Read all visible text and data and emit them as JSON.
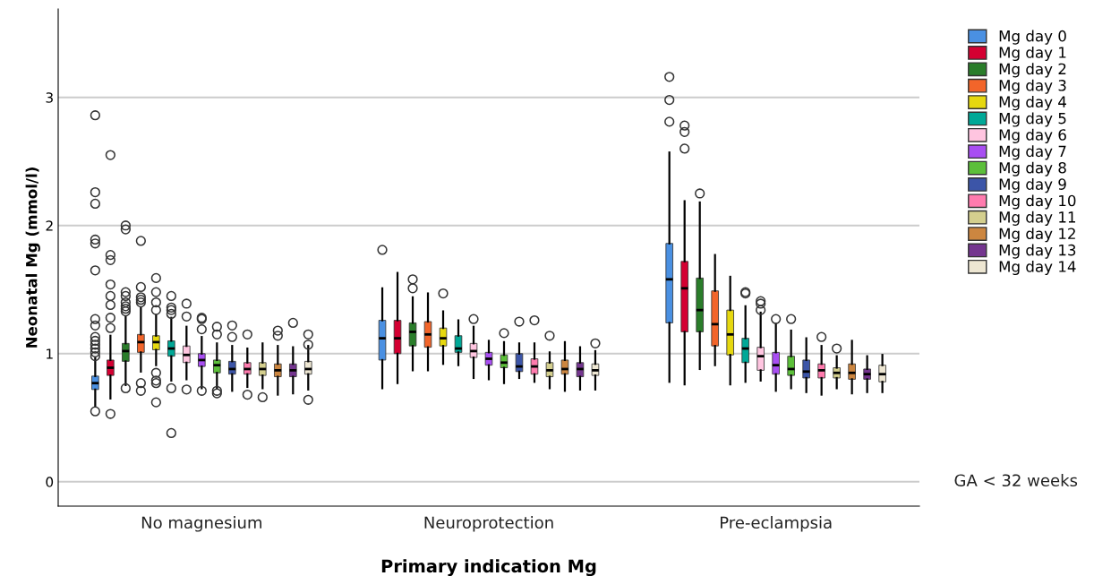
{
  "chart_data": {
    "type": "box",
    "xlabel": "Primary indication Mg",
    "ylabel": "Neonatal Mg (mmol/l)",
    "categories": [
      "No magnesium",
      "Neuroprotection",
      "Pre-eclampsia"
    ],
    "ylim": [
      -0.19,
      3.69
    ],
    "yticks": [
      0,
      1,
      2,
      3
    ],
    "grid": "y",
    "legend": "top right",
    "annotations": [
      "GA < 32 weeks"
    ],
    "series": [
      {
        "name": "Mg day 0",
        "color": "#4a90e2",
        "boxes": [
          {
            "low": 0.59,
            "q1": 0.72,
            "median": 0.77,
            "q3": 0.825,
            "high": 0.965,
            "outliers": [
              0.55,
              0.98,
              1.01,
              1.04,
              1.07,
              1.1,
              1.13,
              1.22,
              1.27,
              1.65,
              1.86,
              1.89,
              2.17,
              2.26,
              2.86
            ]
          },
          {
            "low": 0.73,
            "q1": 0.95,
            "median": 1.12,
            "q3": 1.26,
            "high": 1.51,
            "outliers": [
              1.81
            ]
          },
          {
            "low": 0.78,
            "q1": 1.24,
            "median": 1.58,
            "q3": 1.86,
            "high": 2.57,
            "outliers": [
              2.81,
              2.98,
              3.16
            ]
          }
        ]
      },
      {
        "name": "Mg day 1",
        "color": "#d40032",
        "boxes": [
          {
            "low": 0.65,
            "q1": 0.83,
            "median": 0.89,
            "q3": 0.95,
            "high": 1.14,
            "outliers": [
              0.53,
              1.2,
              1.28,
              1.38,
              1.45,
              1.54,
              1.73,
              1.77,
              2.55
            ]
          },
          {
            "low": 0.77,
            "q1": 1.0,
            "median": 1.12,
            "q3": 1.26,
            "high": 1.63
          },
          {
            "low": 0.76,
            "q1": 1.17,
            "median": 1.51,
            "q3": 1.72,
            "high": 2.19,
            "outliers": [
              2.6,
              2.73,
              2.78
            ]
          }
        ]
      },
      {
        "name": "Mg day 2",
        "color": "#2a7d2a",
        "boxes": [
          {
            "low": 0.755,
            "q1": 0.94,
            "median": 1.02,
            "q3": 1.08,
            "high": 1.29,
            "outliers": [
              0.73,
              1.33,
              1.35,
              1.37,
              1.4,
              1.45,
              1.48,
              1.97,
              2.0
            ]
          },
          {
            "low": 0.87,
            "q1": 1.06,
            "median": 1.17,
            "q3": 1.24,
            "high": 1.44,
            "outliers": [
              1.51,
              1.58
            ]
          },
          {
            "low": 0.88,
            "q1": 1.17,
            "median": 1.34,
            "q3": 1.59,
            "high": 2.18,
            "outliers": [
              2.25
            ]
          }
        ]
      },
      {
        "name": "Mg day 3",
        "color": "#f2652a",
        "boxes": [
          {
            "low": 0.86,
            "q1": 1.01,
            "median": 1.09,
            "q3": 1.15,
            "high": 1.36,
            "outliers": [
              0.71,
              0.77,
              1.4,
              1.42,
              1.44,
              1.52,
              1.88
            ]
          },
          {
            "low": 0.87,
            "q1": 1.05,
            "median": 1.15,
            "q3": 1.25,
            "high": 1.47
          },
          {
            "low": 0.91,
            "q1": 1.06,
            "median": 1.23,
            "q3": 1.49,
            "high": 1.77
          }
        ]
      },
      {
        "name": "Mg day 4",
        "color": "#e6d80f",
        "boxes": [
          {
            "low": 0.91,
            "q1": 1.03,
            "median": 1.09,
            "q3": 1.14,
            "high": 1.3,
            "outliers": [
              0.62,
              0.77,
              0.79,
              0.85,
              1.34,
              1.4,
              1.48,
              1.59
            ]
          },
          {
            "low": 0.92,
            "q1": 1.06,
            "median": 1.12,
            "q3": 1.2,
            "high": 1.33,
            "outliers": [
              1.47
            ]
          },
          {
            "low": 0.76,
            "q1": 0.99,
            "median": 1.15,
            "q3": 1.34,
            "high": 1.6
          }
        ]
      },
      {
        "name": "Mg day 5",
        "color": "#00a897",
        "boxes": [
          {
            "low": 0.79,
            "q1": 0.98,
            "median": 1.04,
            "q3": 1.1,
            "high": 1.28,
            "outliers": [
              0.38,
              0.73,
              1.31,
              1.34,
              1.36,
              1.45
            ]
          },
          {
            "low": 0.91,
            "q1": 1.01,
            "median": 1.04,
            "q3": 1.14,
            "high": 1.26
          },
          {
            "low": 0.78,
            "q1": 0.93,
            "median": 1.04,
            "q3": 1.12,
            "high": 1.37,
            "outliers": [
              1.47,
              1.48
            ]
          }
        ]
      },
      {
        "name": "Mg day 6",
        "color": "#ffc5e0",
        "boxes": [
          {
            "low": 0.8,
            "q1": 0.93,
            "median": 0.99,
            "q3": 1.06,
            "high": 1.21,
            "outliers": [
              0.72,
              1.29,
              1.39
            ]
          },
          {
            "low": 0.81,
            "q1": 0.97,
            "median": 1.02,
            "q3": 1.08,
            "high": 1.21,
            "outliers": [
              1.27
            ]
          },
          {
            "low": 0.79,
            "q1": 0.87,
            "median": 0.98,
            "q3": 1.05,
            "high": 1.32,
            "outliers": [
              1.34,
              1.39,
              1.41
            ]
          }
        ]
      },
      {
        "name": "Mg day 7",
        "color": "#a84ef2",
        "boxes": [
          {
            "low": 0.73,
            "q1": 0.9,
            "median": 0.95,
            "q3": 1.0,
            "high": 1.13,
            "outliers": [
              0.71,
              1.19,
              1.27,
              1.28
            ]
          },
          {
            "low": 0.8,
            "q1": 0.91,
            "median": 0.96,
            "q3": 1.01,
            "high": 1.1
          },
          {
            "low": 0.71,
            "q1": 0.84,
            "median": 0.91,
            "q3": 1.01,
            "high": 1.23,
            "outliers": [
              1.27
            ]
          }
        ]
      },
      {
        "name": "Mg day 8",
        "color": "#5cbf3a",
        "boxes": [
          {
            "low": 0.73,
            "q1": 0.85,
            "median": 0.91,
            "q3": 0.95,
            "high": 1.08,
            "outliers": [
              0.69,
              0.71,
              1.15,
              1.21
            ]
          },
          {
            "low": 0.77,
            "q1": 0.89,
            "median": 0.93,
            "q3": 0.99,
            "high": 1.09,
            "outliers": [
              1.16
            ]
          },
          {
            "low": 0.73,
            "q1": 0.83,
            "median": 0.88,
            "q3": 0.98,
            "high": 1.18,
            "outliers": [
              1.27
            ]
          }
        ]
      },
      {
        "name": "Mg day 9",
        "color": "#3c55a8",
        "boxes": [
          {
            "low": 0.71,
            "q1": 0.84,
            "median": 0.88,
            "q3": 0.94,
            "high": 1.06,
            "outliers": [
              1.13,
              1.22
            ]
          },
          {
            "low": 0.81,
            "q1": 0.86,
            "median": 0.9,
            "q3": 1.0,
            "high": 1.08,
            "outliers": [
              1.25
            ]
          },
          {
            "low": 0.7,
            "q1": 0.81,
            "median": 0.86,
            "q3": 0.95,
            "high": 1.12
          }
        ]
      },
      {
        "name": "Mg day 10",
        "color": "#ff7bae",
        "boxes": [
          {
            "low": 0.74,
            "q1": 0.84,
            "median": 0.88,
            "q3": 0.93,
            "high": 1.04,
            "outliers": [
              0.68,
              1.15
            ]
          },
          {
            "low": 0.78,
            "q1": 0.84,
            "median": 0.9,
            "q3": 0.96,
            "high": 1.08,
            "outliers": [
              1.26
            ]
          },
          {
            "low": 0.68,
            "q1": 0.81,
            "median": 0.87,
            "q3": 0.92,
            "high": 1.06,
            "outliers": [
              1.13
            ]
          }
        ]
      },
      {
        "name": "Mg day 11",
        "color": "#d4cf8e",
        "boxes": [
          {
            "low": 0.73,
            "q1": 0.83,
            "median": 0.88,
            "q3": 0.93,
            "high": 1.08,
            "outliers": [
              0.66
            ]
          },
          {
            "low": 0.73,
            "q1": 0.82,
            "median": 0.87,
            "q3": 0.93,
            "high": 1.01,
            "outliers": [
              1.14
            ]
          },
          {
            "low": 0.73,
            "q1": 0.81,
            "median": 0.85,
            "q3": 0.89,
            "high": 0.98,
            "outliers": [
              1.04
            ]
          }
        ]
      },
      {
        "name": "Mg day 12",
        "color": "#cc8640",
        "boxes": [
          {
            "low": 0.68,
            "q1": 0.82,
            "median": 0.87,
            "q3": 0.92,
            "high": 1.06,
            "outliers": [
              1.14,
              1.18
            ]
          },
          {
            "low": 0.71,
            "q1": 0.84,
            "median": 0.88,
            "q3": 0.95,
            "high": 1.09
          },
          {
            "low": 0.69,
            "q1": 0.8,
            "median": 0.85,
            "q3": 0.92,
            "high": 1.1
          }
        ]
      },
      {
        "name": "Mg day 13",
        "color": "#74358f",
        "boxes": [
          {
            "low": 0.69,
            "q1": 0.82,
            "median": 0.87,
            "q3": 0.92,
            "high": 1.05,
            "outliers": [
              1.24
            ]
          },
          {
            "low": 0.72,
            "q1": 0.82,
            "median": 0.88,
            "q3": 0.93,
            "high": 1.05
          },
          {
            "low": 0.7,
            "q1": 0.8,
            "median": 0.84,
            "q3": 0.88,
            "high": 0.98
          }
        ]
      },
      {
        "name": "Mg day 14",
        "color": "#ede6d2",
        "boxes": [
          {
            "low": 0.72,
            "q1": 0.84,
            "median": 0.88,
            "q3": 0.94,
            "high": 1.06,
            "outliers": [
              0.64,
              1.07,
              1.15
            ]
          },
          {
            "low": 0.72,
            "q1": 0.83,
            "median": 0.87,
            "q3": 0.92,
            "high": 1.02,
            "outliers": [
              1.08
            ]
          },
          {
            "low": 0.7,
            "q1": 0.78,
            "median": 0.84,
            "q3": 0.91,
            "high": 0.99
          }
        ]
      }
    ]
  }
}
